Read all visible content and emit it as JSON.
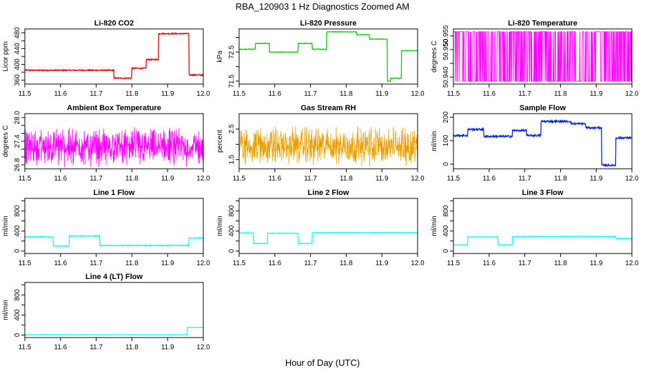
{
  "figure": {
    "title": "RBA_120903  1 Hz Diagnostics Zoomed AM",
    "xlabel": "Hour of Day (UTC)"
  },
  "chart_data": [
    {
      "type": "line",
      "title": "Li-820 CO2",
      "ylabel": "Licor ppm",
      "color": "#dd0000",
      "xlim": [
        11.5,
        12.0
      ],
      "ylim": [
        350,
        490
      ],
      "xticks": [
        11.5,
        11.6,
        11.7,
        11.8,
        11.9,
        12.0
      ],
      "yticks": [
        360,
        380,
        400,
        420,
        440,
        460,
        480
      ],
      "ytick_labels": [
        "360",
        "",
        "400",
        "",
        "440",
        "",
        "480"
      ],
      "series": [
        {
          "style": "step",
          "x": [
            11.5,
            11.75,
            11.8,
            11.84,
            11.875,
            11.96,
            12.0
          ],
          "y": [
            385,
            365,
            390,
            412,
            478,
            373,
            373
          ],
          "noise": 1.5
        }
      ]
    },
    {
      "type": "line",
      "title": "Li-820 Pressure",
      "ylabel": "kPa",
      "color": "#00cc00",
      "xlim": [
        11.5,
        12.0
      ],
      "ylim": [
        71.4,
        73.3
      ],
      "xticks": [
        11.5,
        11.6,
        11.7,
        11.8,
        11.9,
        12.0
      ],
      "yticks": [
        71.5,
        72.0,
        72.5,
        73.0
      ],
      "ytick_labels": [
        "71.5",
        "",
        "72.5",
        ""
      ],
      "series": [
        {
          "style": "step",
          "x": [
            11.5,
            11.545,
            11.585,
            11.665,
            11.705,
            11.745,
            11.77,
            11.83,
            11.865,
            11.915,
            11.925,
            11.955,
            12.0
          ],
          "y": [
            72.6,
            72.8,
            72.5,
            72.8,
            72.6,
            73.2,
            73.2,
            73.1,
            72.95,
            71.5,
            71.6,
            72.55,
            72.55
          ],
          "noise": 0.01
        }
      ]
    },
    {
      "type": "line",
      "title": "Li-820 Temperature",
      "ylabel": "degrees C",
      "color": "#ff00ff",
      "xlim": [
        11.5,
        12.0
      ],
      "ylim": [
        50.9375,
        50.9575
      ],
      "xticks": [
        11.5,
        11.6,
        11.7,
        11.8,
        11.9,
        12.0
      ],
      "yticks": [
        50.94,
        50.945,
        50.95,
        50.955
      ],
      "ytick_labels": [
        "50.940",
        "",
        "50.950",
        "50.955"
      ],
      "series": [
        {
          "style": "binary",
          "x": [
            11.5,
            12.0
          ],
          "low": 50.9385,
          "high": 50.9565
        }
      ]
    },
    {
      "type": "line",
      "title": "Ambient Box Temperature",
      "ylabel": "degrees C",
      "color": "#ff00ff",
      "xlim": [
        11.5,
        12.0
      ],
      "ylim": [
        26.7,
        28.1
      ],
      "xticks": [
        11.5,
        11.6,
        11.7,
        11.8,
        11.9,
        12.0
      ],
      "yticks": [
        26.8,
        27.0,
        27.2,
        27.4,
        27.6,
        27.8,
        28.0
      ],
      "ytick_labels": [
        "26.8",
        "",
        "",
        "27.4",
        "",
        "",
        "28.0"
      ],
      "series": [
        {
          "style": "noise",
          "x": [
            11.5,
            12.0
          ],
          "center": 27.25,
          "spread": 0.55
        }
      ]
    },
    {
      "type": "line",
      "title": "Gas Stream RH",
      "ylabel": "percent",
      "color": "#e8a000",
      "xlim": [
        11.5,
        12.0
      ],
      "ylim": [
        1.2,
        3.0
      ],
      "xticks": [
        11.5,
        11.6,
        11.7,
        11.8,
        11.9,
        12.0
      ],
      "yticks": [
        1.5,
        2.0,
        2.5
      ],
      "ytick_labels": [
        "1.5",
        "",
        "2.5"
      ],
      "series": [
        {
          "style": "noise",
          "x": [
            11.5,
            12.0
          ],
          "center": 1.95,
          "spread": 0.7
        }
      ]
    },
    {
      "type": "line",
      "title": "Sample Flow",
      "ylabel": "ml/min",
      "color": "#0022dd",
      "xlim": [
        11.5,
        12.0
      ],
      "ylim": [
        -20,
        215
      ],
      "xticks": [
        11.5,
        11.6,
        11.7,
        11.8,
        11.9,
        12.0
      ],
      "yticks": [
        0,
        100,
        200
      ],
      "ytick_labels": [
        "0",
        "100",
        "200"
      ],
      "series": [
        {
          "style": "step",
          "x": [
            11.5,
            11.54,
            11.585,
            11.665,
            11.705,
            11.745,
            11.83,
            11.87,
            11.915,
            11.955,
            12.0
          ],
          "y": [
            122,
            148,
            118,
            143,
            122,
            182,
            172,
            155,
            -5,
            112,
            112
          ],
          "noise": 4
        }
      ]
    },
    {
      "type": "line",
      "title": "Line 1 Flow",
      "ylabel": "ml/min",
      "color": "#00ffff",
      "xlim": [
        11.5,
        12.0
      ],
      "ylim": [
        -50,
        1050
      ],
      "xticks": [
        11.5,
        11.6,
        11.7,
        11.8,
        11.9,
        12.0
      ],
      "yticks": [
        0,
        200,
        400,
        600,
        800,
        1000
      ],
      "ytick_labels": [
        "0",
        "",
        "400",
        "",
        "800",
        ""
      ],
      "series": [
        {
          "style": "step",
          "x": [
            11.5,
            11.58,
            11.625,
            11.71,
            11.96,
            12.0
          ],
          "y": [
            280,
            100,
            300,
            110,
            260,
            260
          ],
          "noise": 8
        }
      ]
    },
    {
      "type": "line",
      "title": "Line 2 Flow",
      "ylabel": "ml/min",
      "color": "#00ffff",
      "xlim": [
        11.5,
        12.0
      ],
      "ylim": [
        -50,
        1050
      ],
      "xticks": [
        11.5,
        11.6,
        11.7,
        11.8,
        11.9,
        12.0
      ],
      "yticks": [
        0,
        200,
        400,
        600,
        800,
        1000
      ],
      "ytick_labels": [
        "0",
        "",
        "400",
        "",
        "800",
        ""
      ],
      "series": [
        {
          "style": "step",
          "x": [
            11.5,
            11.54,
            11.58,
            11.665,
            11.705,
            12.0
          ],
          "y": [
            360,
            150,
            355,
            150,
            365,
            350
          ],
          "noise": 5
        }
      ]
    },
    {
      "type": "line",
      "title": "Line 3 Flow",
      "ylabel": "ml/min",
      "color": "#00ffff",
      "xlim": [
        11.5,
        12.0
      ],
      "ylim": [
        -50,
        1050
      ],
      "xticks": [
        11.5,
        11.6,
        11.7,
        11.8,
        11.9,
        12.0
      ],
      "yticks": [
        0,
        200,
        400,
        600,
        800,
        1000
      ],
      "ytick_labels": [
        "0",
        "",
        "400",
        "",
        "800",
        ""
      ],
      "series": [
        {
          "style": "step",
          "x": [
            11.5,
            11.54,
            11.625,
            11.665,
            11.955,
            12.0
          ],
          "y": [
            120,
            280,
            120,
            290,
            250,
            250
          ],
          "noise": 5
        }
      ]
    },
    {
      "type": "line",
      "title": "Line 4 (LT) Flow",
      "ylabel": "ml/min",
      "color": "#00ffff",
      "xlim": [
        11.5,
        12.0
      ],
      "ylim": [
        -50,
        1050
      ],
      "xticks": [
        11.5,
        11.6,
        11.7,
        11.8,
        11.9,
        12.0
      ],
      "yticks": [
        0,
        200,
        400,
        600,
        800,
        1000
      ],
      "ytick_labels": [
        "0",
        "",
        "400",
        "",
        "800",
        ""
      ],
      "series": [
        {
          "style": "step",
          "x": [
            11.5,
            11.955,
            12.0
          ],
          "y": [
            5,
            150,
            150
          ],
          "noise": 1
        }
      ]
    }
  ]
}
